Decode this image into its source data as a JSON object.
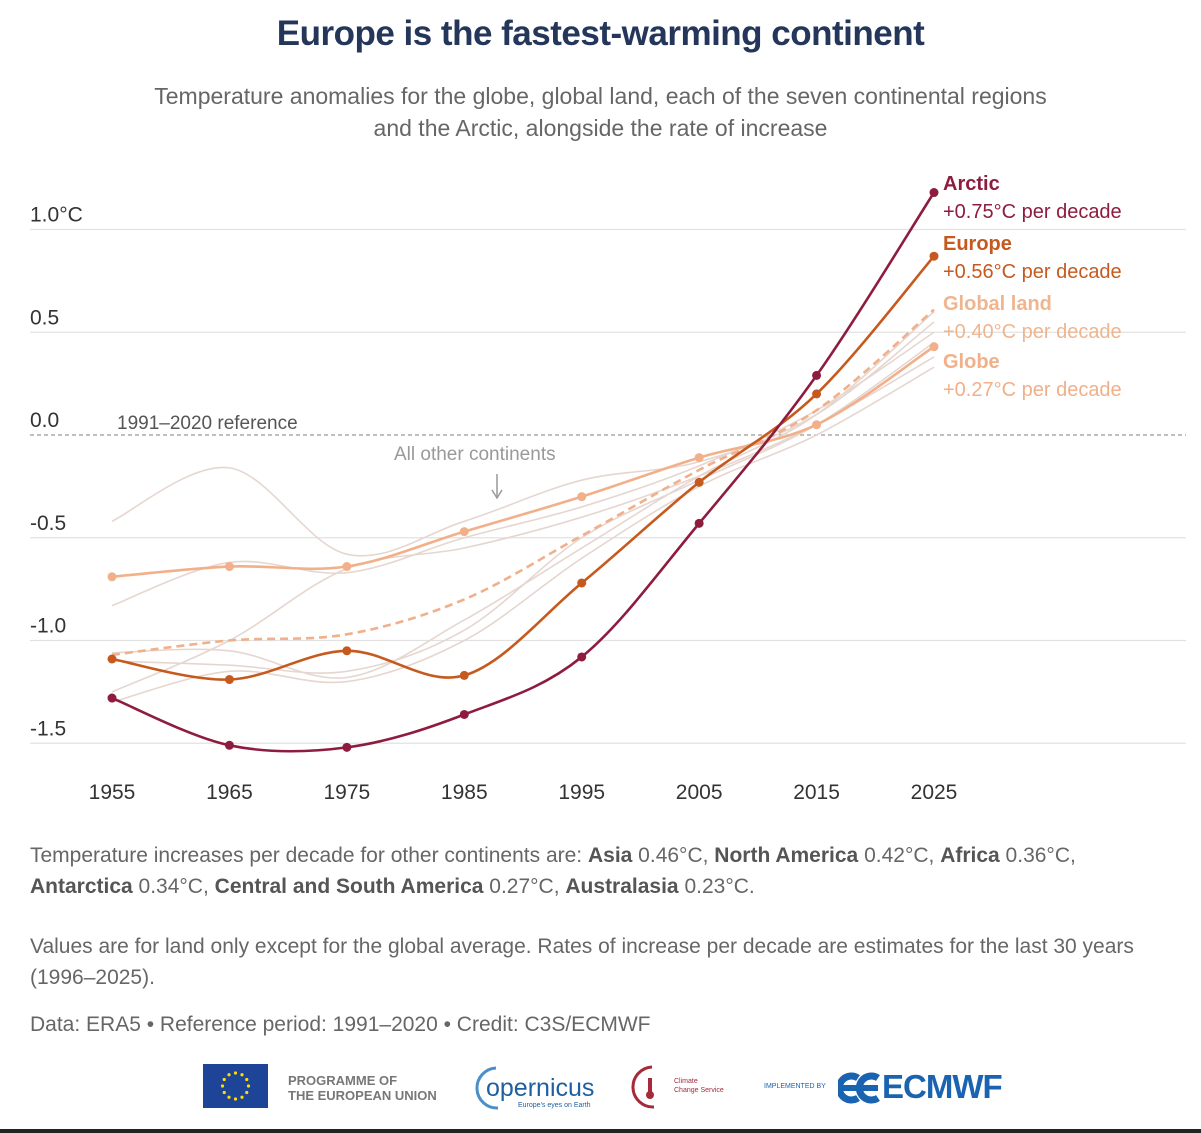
{
  "title": "Europe is the fastest-warming continent",
  "subtitle_line1": "Temperature anomalies for the globe, global land, each of the seven continental regions",
  "subtitle_line2": "and the Arctic, alongside the rate of increase",
  "chart_data": {
    "type": "line",
    "x": [
      1955,
      1965,
      1975,
      1985,
      1995,
      2005,
      2015,
      2025
    ],
    "ylim": [
      -1.6,
      1.2
    ],
    "yticks": [
      1.0,
      0.5,
      0.0,
      -0.5,
      -1.0,
      -1.5
    ],
    "ytick_labels": [
      "1.0°C",
      "0.5",
      "0.0",
      "-0.5",
      "-1.0",
      "-1.5"
    ],
    "xtick_labels": [
      "1955",
      "1965",
      "1975",
      "1985",
      "1995",
      "2005",
      "2015",
      "2025"
    ],
    "grid": "horizontal",
    "reference_label": "1991–2020 reference",
    "annotation_other": "All other continents",
    "series": [
      {
        "name": "Arctic",
        "rate": "+0.75°C per decade",
        "color": "#8e1c3e",
        "style": "solid",
        "markers": true,
        "values": [
          -1.28,
          -1.51,
          -1.52,
          -1.36,
          -1.08,
          -0.43,
          0.29,
          1.18
        ]
      },
      {
        "name": "Europe",
        "rate": "+0.56°C per decade",
        "color": "#c65a1e",
        "style": "solid",
        "markers": true,
        "values": [
          -1.09,
          -1.19,
          -1.05,
          -1.17,
          -0.72,
          -0.23,
          0.2,
          0.87
        ]
      },
      {
        "name": "Global land",
        "rate": "+0.40°C per decade",
        "color": "#efb08a",
        "style": "dashed",
        "markers": false,
        "values": [
          -1.07,
          -1.0,
          -0.97,
          -0.8,
          -0.49,
          -0.17,
          0.12,
          0.61
        ]
      },
      {
        "name": "Globe",
        "rate": "+0.27°C per decade",
        "color": "#f2b08a",
        "style": "solid",
        "markers": true,
        "values": [
          -0.69,
          -0.64,
          -0.64,
          -0.47,
          -0.3,
          -0.11,
          0.05,
          0.43
        ]
      }
    ],
    "other_continents": {
      "color": "#e6d6d0",
      "series": [
        [
          -0.42,
          -0.16,
          -0.58,
          -0.42,
          -0.22,
          -0.13,
          0.1,
          0.55
        ],
        [
          -0.83,
          -0.62,
          -0.67,
          -0.5,
          -0.35,
          -0.15,
          0.12,
          0.5
        ],
        [
          -1.06,
          -1.05,
          -1.18,
          -0.9,
          -0.55,
          -0.2,
          0.1,
          0.6
        ],
        [
          -1.1,
          -1.12,
          -1.15,
          -0.95,
          -0.5,
          -0.22,
          0.05,
          0.45
        ],
        [
          -1.25,
          -1.0,
          -0.65,
          -0.55,
          -0.4,
          -0.2,
          0.05,
          0.38
        ],
        [
          -1.3,
          -1.15,
          -1.2,
          -1.0,
          -0.6,
          -0.25,
          0.0,
          0.33
        ]
      ]
    }
  },
  "notes": {
    "p1_intro": "Temperature increases per decade for other continents are: ",
    "continents": [
      {
        "name": "Asia",
        "value": " 0.46°C, "
      },
      {
        "name": "North America",
        "value": " 0.42°C, "
      },
      {
        "name": "Africa",
        "value": " 0.36°C, "
      },
      {
        "name": "Antarctica",
        "value": " 0.34°C, "
      },
      {
        "name": "Central and South America",
        "value": " 0.27°C, "
      },
      {
        "name": "Australasia",
        "value": " 0.23°C."
      }
    ],
    "p2": "Values are for land only except for the global average. Rates of increase per decade are estimates for the last 30 years (1996–2025).",
    "p3": "Data: ERA5 • Reference period: 1991–2020 • Credit: C3S/ECMWF"
  },
  "logos": {
    "eu_line1": "PROGRAMME OF",
    "eu_line2": "THE EUROPEAN UNION",
    "copernicus": "opernicus",
    "copernicus_tag": "Europe's eyes on Earth",
    "ccs_line1": "Climate",
    "ccs_line2": "Change Service",
    "implemented_by": "IMPLEMENTED BY",
    "ecmwf": "ECMWF"
  },
  "colors": {
    "title": "#24365a",
    "eu_blue": "#1d4496",
    "ecmwf_blue": "#1a63b0"
  }
}
